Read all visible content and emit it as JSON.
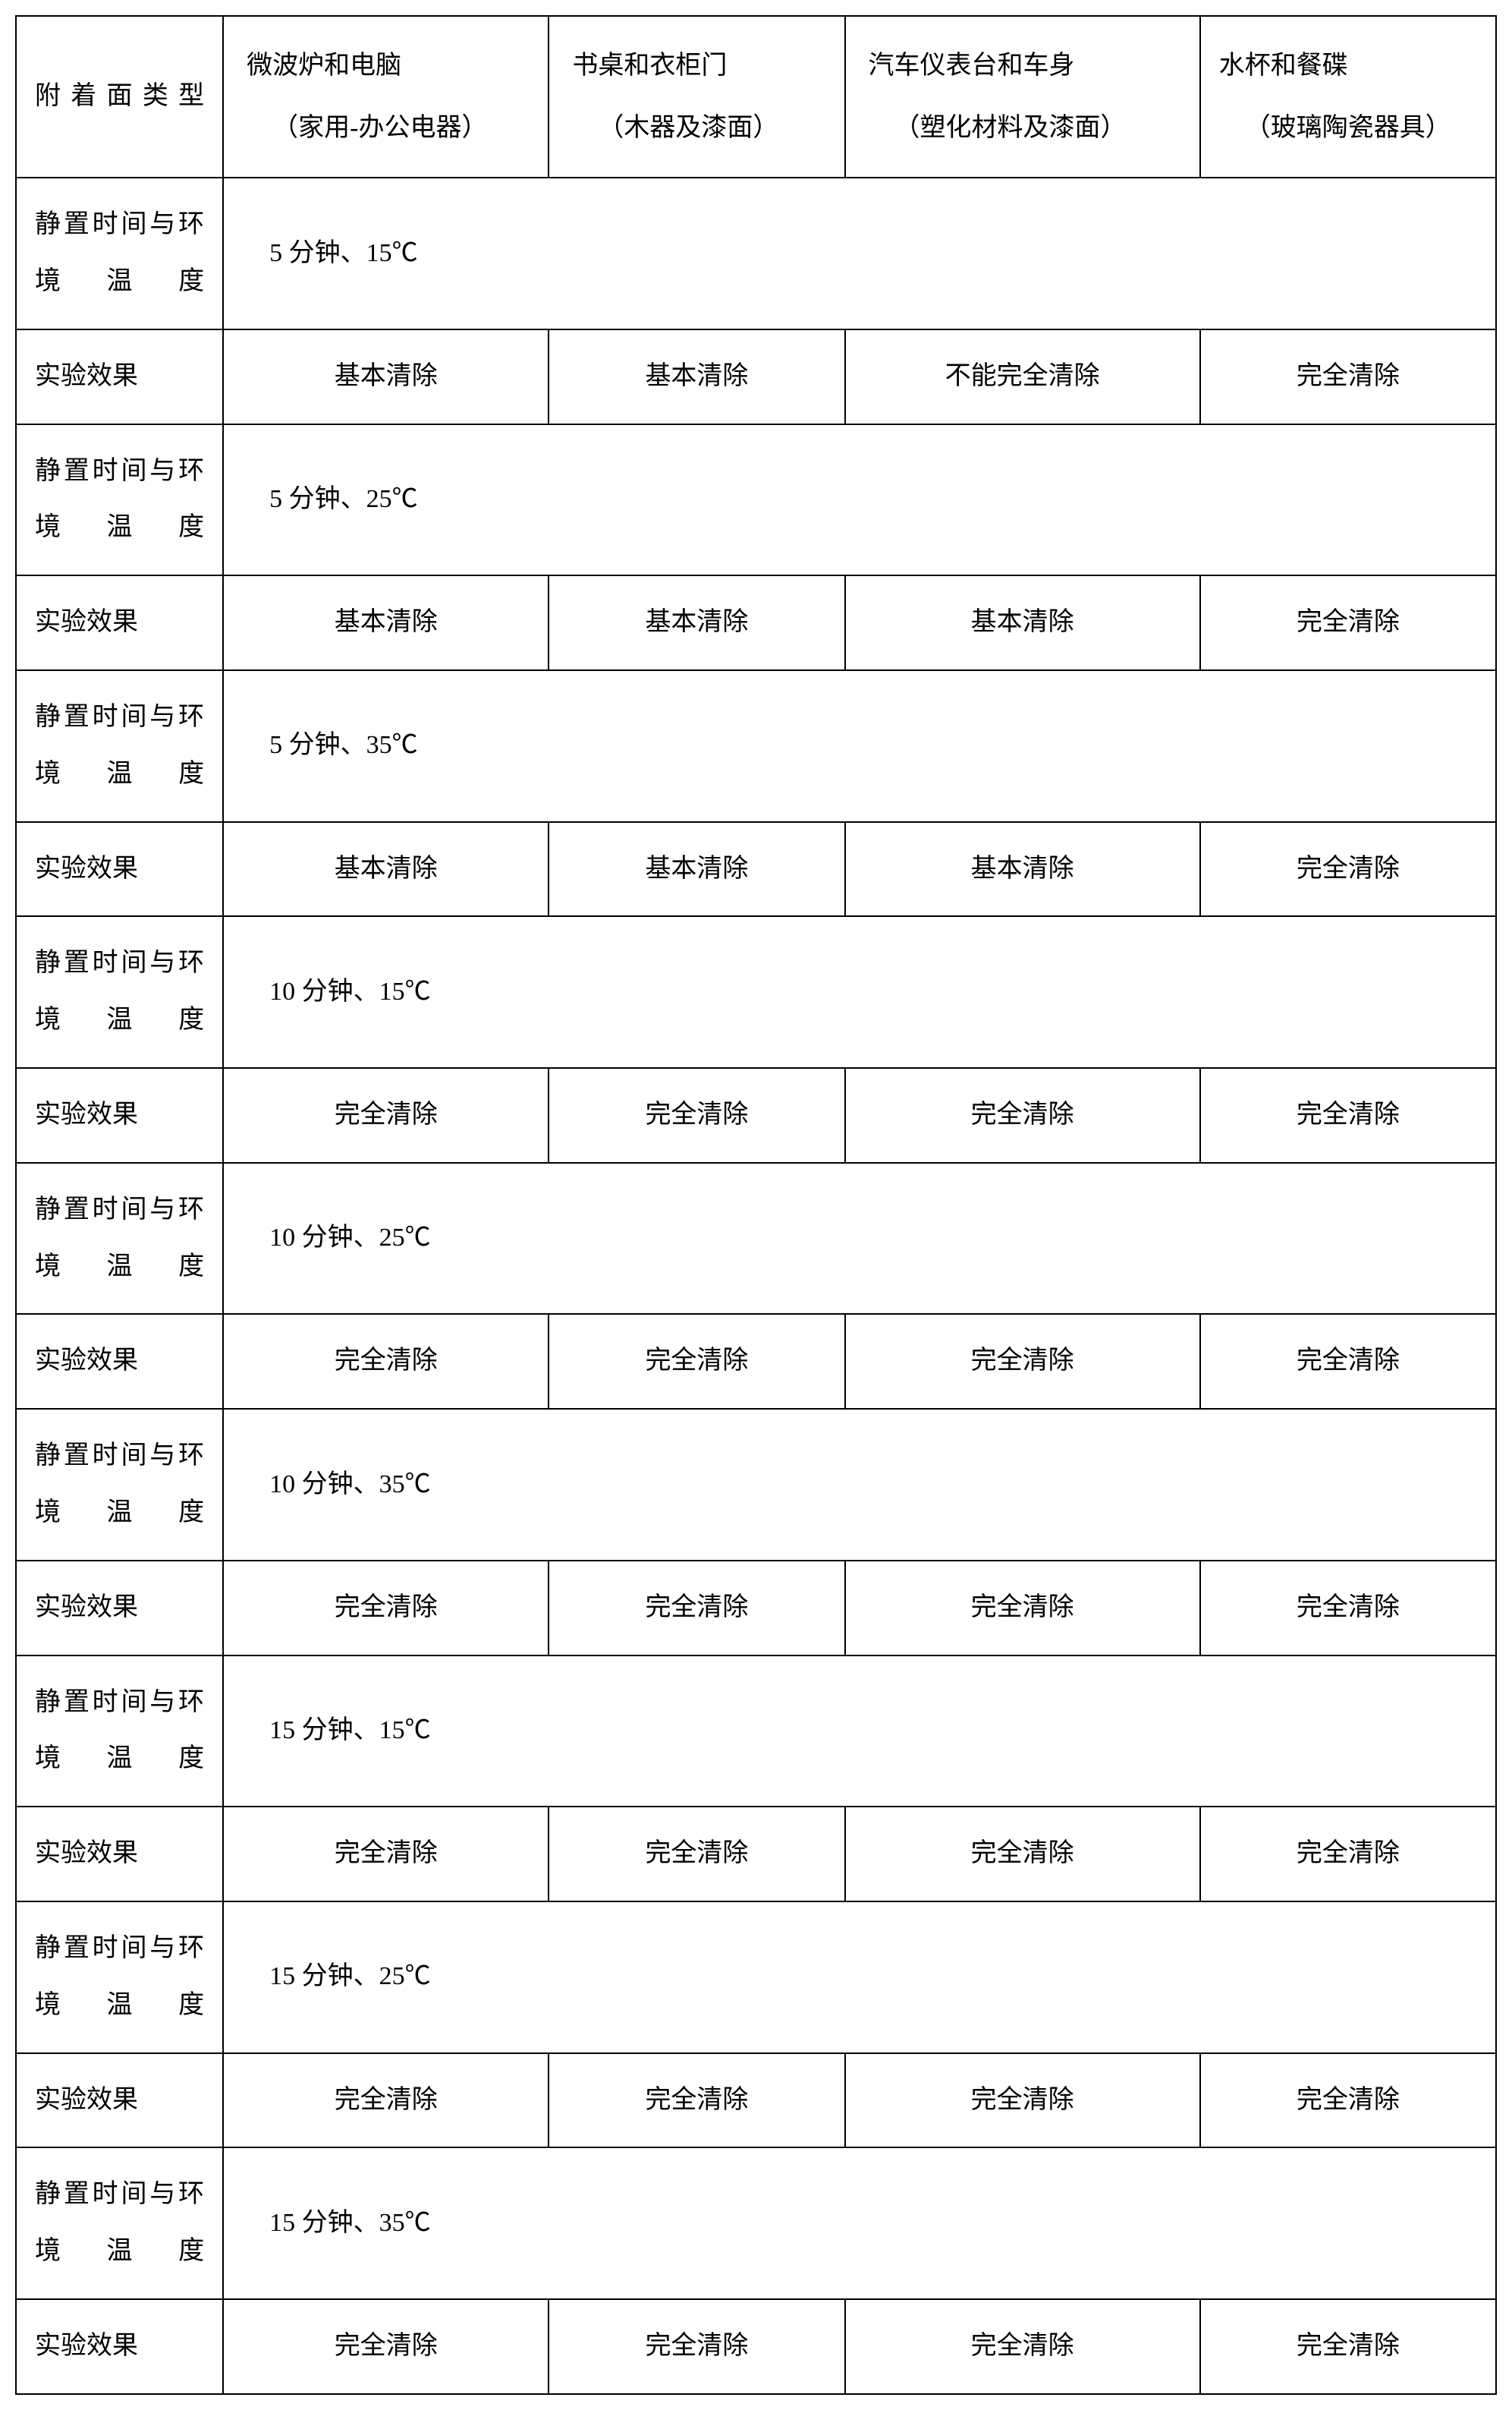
{
  "table": {
    "border_color": "#000000",
    "background_color": "#ffffff",
    "text_color": "#000000",
    "font_size_pt": 14,
    "column_widths_pct": [
      14,
      22,
      20,
      24,
      20
    ],
    "header_row": {
      "label": "附着面类型",
      "columns": [
        {
          "main": "微波炉和电脑",
          "sub": "（家用-办公电器）"
        },
        {
          "main": "书桌和衣柜门",
          "sub": "（木器及漆面）"
        },
        {
          "main": "汽车仪表台和车身",
          "sub": "（塑化材料及漆面）"
        },
        {
          "main": "水杯和餐碟",
          "sub": "（玻璃陶瓷器具）"
        }
      ]
    },
    "row_labels": {
      "condition": "静置时间与环境温度",
      "result": "实验效果"
    },
    "groups": [
      {
        "condition": "5 分钟、15℃",
        "results": [
          "基本清除",
          "基本清除",
          "不能完全清除",
          "完全清除"
        ]
      },
      {
        "condition": "5 分钟、25℃",
        "results": [
          "基本清除",
          "基本清除",
          "基本清除",
          "完全清除"
        ]
      },
      {
        "condition": "5 分钟、35℃",
        "results": [
          "基本清除",
          "基本清除",
          "基本清除",
          "完全清除"
        ]
      },
      {
        "condition": "10 分钟、15℃",
        "results": [
          "完全清除",
          "完全清除",
          "完全清除",
          "完全清除"
        ]
      },
      {
        "condition": "10 分钟、25℃",
        "results": [
          "完全清除",
          "完全清除",
          "完全清除",
          "完全清除"
        ]
      },
      {
        "condition": "10 分钟、35℃",
        "results": [
          "完全清除",
          "完全清除",
          "完全清除",
          "完全清除"
        ]
      },
      {
        "condition": "15 分钟、15℃",
        "results": [
          "完全清除",
          "完全清除",
          "完全清除",
          "完全清除"
        ]
      },
      {
        "condition": "15 分钟、25℃",
        "results": [
          "完全清除",
          "完全清除",
          "完全清除",
          "完全清除"
        ]
      },
      {
        "condition": "15 分钟、35℃",
        "results": [
          "完全清除",
          "完全清除",
          "完全清除",
          "完全清除"
        ]
      }
    ]
  }
}
